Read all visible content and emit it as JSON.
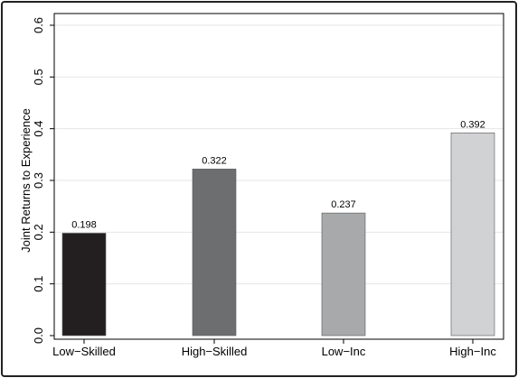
{
  "chart_data": {
    "type": "bar",
    "title": "",
    "xlabel": "",
    "ylabel": "Joint Returns to Experience",
    "ylim": [
      0,
      0.6
    ],
    "yticks": [
      "0.0",
      "0.1",
      "0.2",
      "0.3",
      "0.4",
      "0.5",
      "0.6"
    ],
    "ytick_values": [
      0,
      0.1,
      0.2,
      0.3,
      0.4,
      0.5,
      0.6
    ],
    "grid": true,
    "categories": [
      "Low−Skilled",
      "High−Skilled",
      "Low−Inc",
      "High−Inc"
    ],
    "values": [
      0.198,
      0.322,
      0.237,
      0.392
    ],
    "value_labels": [
      "0.198",
      "0.322",
      "0.237",
      "0.392"
    ],
    "colors": [
      "#231f20",
      "#6d6e70",
      "#a7a9ab",
      "#d1d2d4"
    ]
  }
}
